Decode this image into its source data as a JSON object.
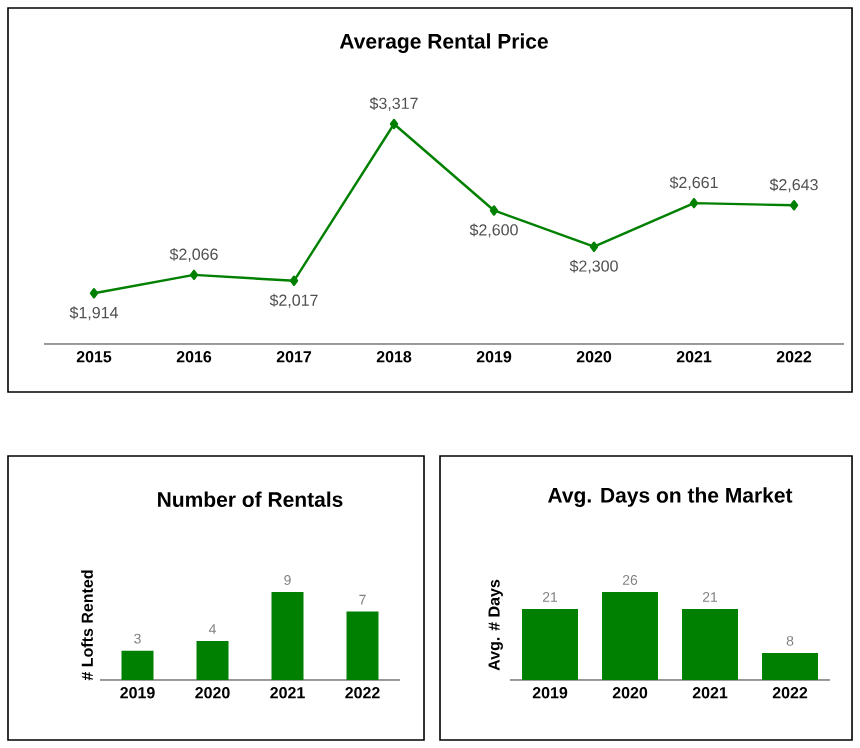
{
  "chart_data": [
    {
      "type": "line",
      "title": "Average Rental Price",
      "categories": [
        "2015",
        "2016",
        "2017",
        "2018",
        "2019",
        "2020",
        "2021",
        "2022"
      ],
      "series": [
        {
          "color": "#008000",
          "values": [
            1914,
            2066,
            2017,
            3317,
            2600,
            2300,
            2661,
            2643
          ],
          "value_labels": [
            "$1,914",
            "$2,066",
            "$2,017",
            "$3,317",
            "$2,600",
            "$2,300",
            "$2,661",
            "$2,643"
          ]
        }
      ],
      "marker": "diamond"
    },
    {
      "type": "bar",
      "title": "Number of Rentals",
      "ylabel": "# Lofts Rented",
      "categories": [
        "2019",
        "2020",
        "2021",
        "2022"
      ],
      "series": [
        {
          "color": "#008000",
          "values": [
            3,
            4,
            9,
            7
          ]
        }
      ],
      "data_labels": true
    },
    {
      "type": "bar",
      "title": "Avg. Days on the Market",
      "ylabel": "Avg. # Days",
      "categories": [
        "2019",
        "2020",
        "2021",
        "2022"
      ],
      "series": [
        {
          "color": "#008000",
          "values": [
            21,
            26,
            21,
            8
          ]
        }
      ],
      "data_labels": true
    }
  ]
}
